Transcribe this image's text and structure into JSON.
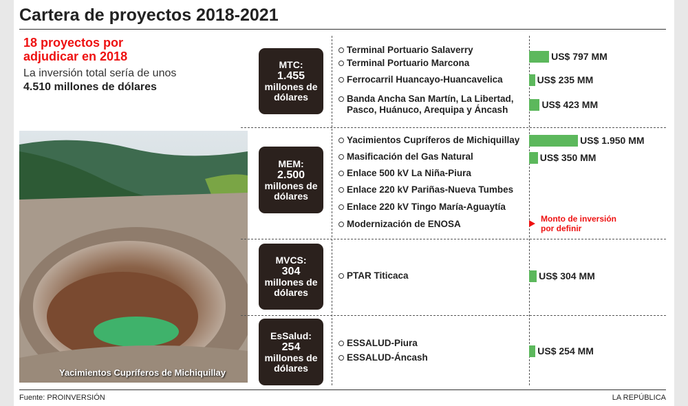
{
  "title": "Cartera de proyectos 2018-2021",
  "intro": {
    "headline": "18 proyectos por adjudicar en 2018",
    "text": "La inversión total sería de unos",
    "total": "4.510 millones de dólares"
  },
  "photo_caption": "Yacimientos Cupríferos de Michiquillay",
  "sections": [
    {
      "box": [
        "MTC:",
        "1.455",
        "millones de",
        "dólares"
      ],
      "projects": [
        "Terminal Portuario Salaverry",
        "Terminal Portuario Marcona",
        "Ferrocarril Huancayo-Huancavelica",
        "Banda Ancha San Martín, La Libertad, Pasco, Huánuco, Arequipa y Áncash"
      ],
      "investments": [
        {
          "value": 797,
          "label": "US$ 797 MM"
        },
        {
          "value": 235,
          "label": "US$ 235 MM"
        },
        {
          "value": 423,
          "label": "US$ 423 MM"
        }
      ]
    },
    {
      "box": [
        "MEM:",
        "2.500",
        "millones de",
        "dólares"
      ],
      "projects": [
        "Yacimientos Cupríferos de Michiquillay",
        "Masificación del Gas Natural",
        "Enlace 500 kV La Niña-Piura",
        "Enlace 220 kV Pariñas-Nueva Tumbes",
        "Enlace 220 kV Tingo María-Aguaytía",
        "Modernización de ENOSA"
      ],
      "investments": [
        {
          "value": 1950,
          "label": "US$ 1.950 MM"
        },
        {
          "value": 350,
          "label": "US$ 350 MM"
        }
      ],
      "note": "Monto de inversión por definir"
    },
    {
      "box": [
        "MVCS:",
        "304",
        "millones de",
        "dólares"
      ],
      "projects": [
        "PTAR Titicaca"
      ],
      "investments": [
        {
          "value": 304,
          "label": "US$ 304 MM"
        }
      ]
    },
    {
      "box": [
        "EsSalud:",
        "254",
        "millones de",
        "dólares"
      ],
      "projects": [
        "ESSALUD-Piura",
        "ESSALUD-Áncash"
      ],
      "investments": [
        {
          "value": 254,
          "label": "US$ 254 MM"
        }
      ]
    }
  ],
  "footer": {
    "source": "Fuente: PROINVERSIÓN",
    "brand": "LA REPÚBLICA"
  }
}
